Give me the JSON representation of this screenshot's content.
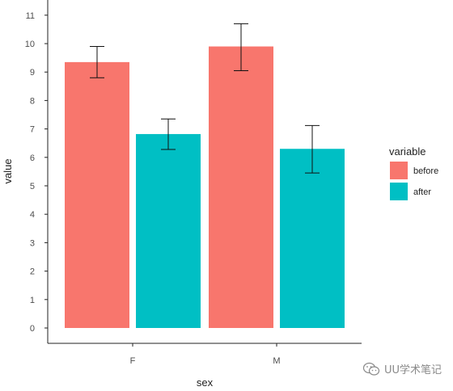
{
  "chart_data": {
    "type": "bar",
    "categories": [
      "F",
      "M"
    ],
    "xlabel": "sex",
    "ylabel": "value",
    "ylim": [
      -0.6,
      11.5
    ],
    "yticks": [
      0,
      1,
      2,
      3,
      4,
      5,
      6,
      7,
      8,
      9,
      10,
      11
    ],
    "legend_title": "variable",
    "legend_position": "right",
    "grid": false,
    "series": [
      {
        "name": "before",
        "color": "#f8766d",
        "values": [
          9.35,
          9.9
        ],
        "error_low": [
          8.8,
          9.05
        ],
        "error_high": [
          9.9,
          10.7
        ]
      },
      {
        "name": "after",
        "color": "#00bfc4",
        "values": [
          6.82,
          6.3
        ],
        "error_low": [
          6.28,
          5.45
        ],
        "error_high": [
          7.35,
          7.12
        ]
      }
    ]
  },
  "watermark": {
    "text": "UU学术笔记",
    "icon": "wechat-icon"
  }
}
